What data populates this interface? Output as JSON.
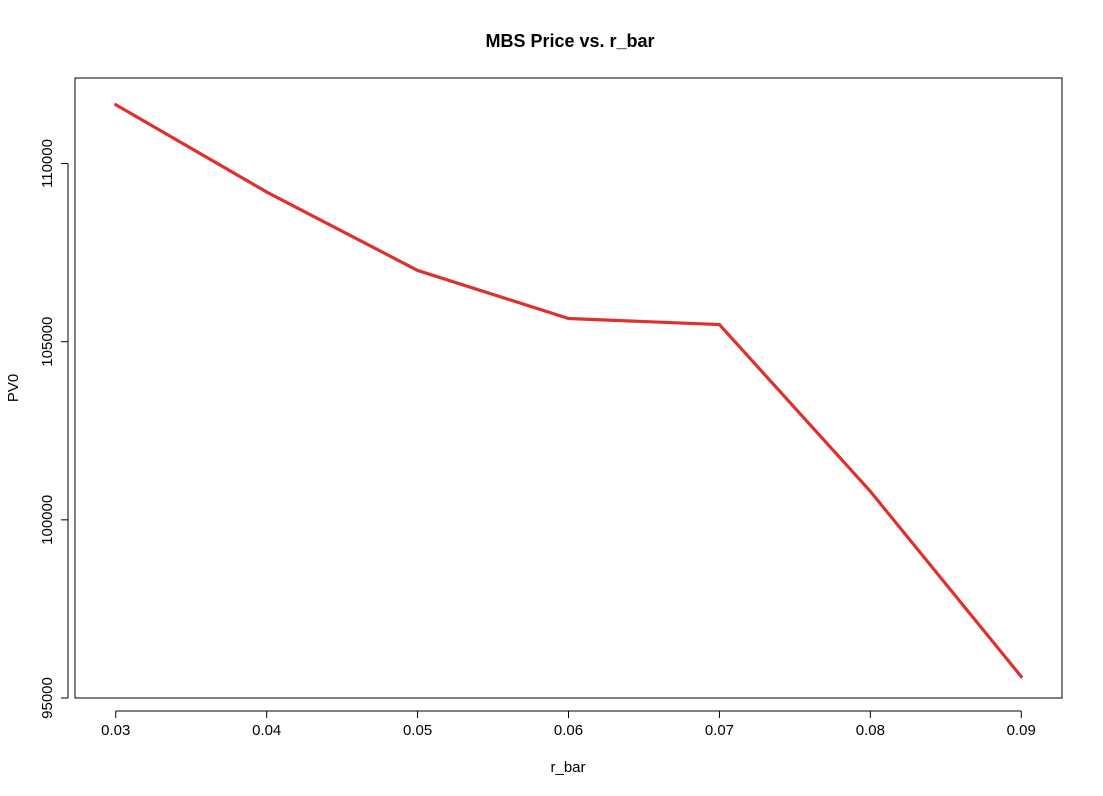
{
  "chart_data": {
    "type": "line",
    "title": "MBS Price vs. r_bar",
    "xlabel": "r_bar",
    "ylabel": "PV0",
    "x": [
      0.03,
      0.04,
      0.05,
      0.06,
      0.07,
      0.08,
      0.09
    ],
    "series": [
      {
        "values": [
          111650,
          109200,
          107000,
          105650,
          105480,
          100800,
          95600
        ],
        "color": "#e0302c"
      }
    ],
    "x_ticks": [
      "0.03",
      "0.04",
      "0.05",
      "0.06",
      "0.07",
      "0.08",
      "0.09"
    ],
    "y_ticks": [
      "95000",
      "100000",
      "105000",
      "110000"
    ],
    "xlim": [
      0.0273,
      0.0927
    ],
    "ylim": [
      95000,
      112400
    ],
    "grid": false,
    "legend": "none"
  }
}
